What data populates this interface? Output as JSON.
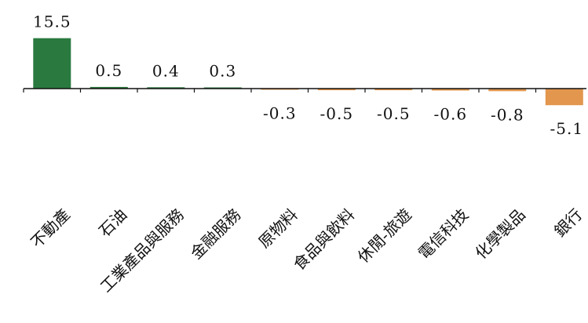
{
  "chart_data": {
    "type": "bar",
    "categories": [
      "不動產",
      "石油",
      "工業產品與服務",
      "金融服務",
      "原物料",
      "食品與飲料",
      "休閒-旅遊",
      "電信科技",
      "化學製品",
      "銀行"
    ],
    "values": [
      15.5,
      0.5,
      0.4,
      0.3,
      -0.3,
      -0.5,
      -0.5,
      -0.6,
      -0.8,
      -5.1
    ],
    "value_labels": [
      "15.5",
      "0.5",
      "0.4",
      "0.3",
      "-0.3",
      "-0.5",
      "-0.5",
      "-0.6",
      "-0.8",
      "-5.1"
    ],
    "colors": {
      "positive": "#2a7a3f",
      "negative": "#e2964e",
      "axis": "#111111"
    },
    "grid": false,
    "legend": "none",
    "title": "",
    "xlabel": "",
    "ylabel": ""
  }
}
